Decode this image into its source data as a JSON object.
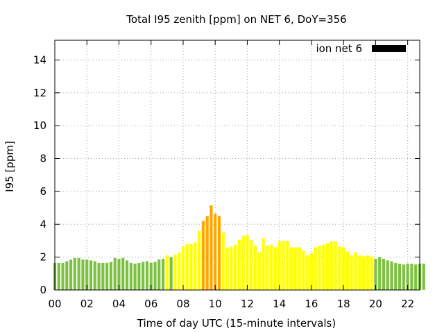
{
  "chart_data": {
    "type": "bar",
    "title": "Total I95 zenith [ppm] on NET 6, DoY=356",
    "xlabel": "Time of day UTC (15-minute intervals)",
    "ylabel": "I95 [ppm]",
    "legend": {
      "label": "ion net 6",
      "position": "top-right",
      "color": "#000000"
    },
    "xlim": [
      0,
      22.75
    ],
    "ylim": [
      0,
      15.2
    ],
    "grid": true,
    "x_ticks": [
      "00",
      "02",
      "04",
      "06",
      "08",
      "10",
      "12",
      "14",
      "16",
      "18",
      "20",
      "22"
    ],
    "y_ticks": [
      "0",
      "2",
      "4",
      "6",
      "8",
      "10",
      "12",
      "14"
    ],
    "x_interval_hours": 0.25,
    "colors": {
      "low": "#7dc142",
      "moderate": "#ffff00",
      "high": "#ffa500"
    },
    "values": [
      1.65,
      1.65,
      1.65,
      1.75,
      1.85,
      1.95,
      1.95,
      1.85,
      1.85,
      1.8,
      1.75,
      1.65,
      1.65,
      1.65,
      1.7,
      1.95,
      1.9,
      1.95,
      1.8,
      1.65,
      1.6,
      1.65,
      1.7,
      1.75,
      1.65,
      1.7,
      1.85,
      1.9,
      2.1,
      2.0,
      2.15,
      2.3,
      2.65,
      2.8,
      2.8,
      2.9,
      3.6,
      4.2,
      4.5,
      5.15,
      4.65,
      4.5,
      3.5,
      2.55,
      2.65,
      2.75,
      3.05,
      3.3,
      3.35,
      3.05,
      2.7,
      2.3,
      3.15,
      2.7,
      2.75,
      2.6,
      2.95,
      3.0,
      3.0,
      2.6,
      2.6,
      2.6,
      2.4,
      2.1,
      2.25,
      2.6,
      2.7,
      2.75,
      2.85,
      2.95,
      2.95,
      2.65,
      2.6,
      2.35,
      2.1,
      2.3,
      2.1,
      2.05,
      2.1,
      2.05,
      1.9,
      2.0,
      1.9,
      1.8,
      1.75,
      1.65,
      1.6,
      1.55,
      1.6,
      1.6,
      1.55,
      1.6,
      1.6
    ],
    "levels": [
      "low",
      "low",
      "low",
      "low",
      "low",
      "low",
      "low",
      "low",
      "low",
      "low",
      "low",
      "low",
      "low",
      "low",
      "low",
      "low",
      "low",
      "low",
      "low",
      "low",
      "low",
      "low",
      "low",
      "low",
      "low",
      "low",
      "low",
      "low",
      "moderate",
      "low",
      "moderate",
      "moderate",
      "moderate",
      "moderate",
      "moderate",
      "moderate",
      "moderate",
      "high",
      "high",
      "high",
      "high",
      "high",
      "moderate",
      "moderate",
      "moderate",
      "moderate",
      "moderate",
      "moderate",
      "moderate",
      "moderate",
      "moderate",
      "moderate",
      "moderate",
      "moderate",
      "moderate",
      "moderate",
      "moderate",
      "moderate",
      "moderate",
      "moderate",
      "moderate",
      "moderate",
      "moderate",
      "moderate",
      "moderate",
      "moderate",
      "moderate",
      "moderate",
      "moderate",
      "moderate",
      "moderate",
      "moderate",
      "moderate",
      "moderate",
      "moderate",
      "moderate",
      "moderate",
      "moderate",
      "moderate",
      "moderate",
      "low",
      "low",
      "low",
      "low",
      "low",
      "low",
      "low",
      "low",
      "low",
      "low",
      "low",
      "low",
      "low"
    ]
  }
}
